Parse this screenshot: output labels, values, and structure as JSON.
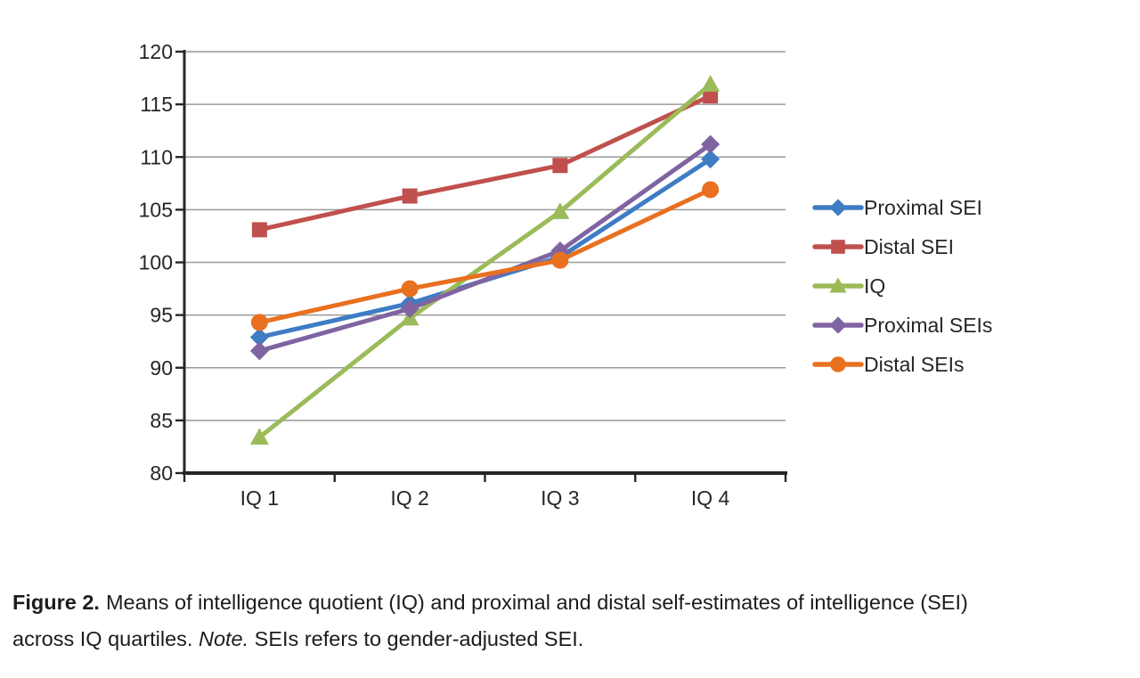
{
  "chart_data": {
    "type": "line",
    "categories": [
      "IQ 1",
      "IQ 2",
      "IQ 3",
      "IQ 4"
    ],
    "series": [
      {
        "name": "Proximal SEI",
        "color": "#3E7CC4",
        "marker": "diamond",
        "values": [
          92.9,
          96.1,
          100.5,
          109.8
        ]
      },
      {
        "name": "Distal SEI",
        "color": "#C0504D",
        "marker": "square",
        "values": [
          103.1,
          106.3,
          109.2,
          115.8
        ]
      },
      {
        "name": "IQ",
        "color": "#9BBB59",
        "marker": "triangle",
        "values": [
          83.4,
          94.7,
          104.8,
          116.9
        ]
      },
      {
        "name": "Proximal SEIs",
        "color": "#8064A2",
        "marker": "diamond",
        "values": [
          91.6,
          95.6,
          101.1,
          111.2
        ]
      },
      {
        "name": "Distal SEIs",
        "color": "#E8701F",
        "marker": "circle",
        "values": [
          94.3,
          97.5,
          100.2,
          106.9
        ]
      }
    ],
    "title": "",
    "xlabel": "",
    "ylabel": "",
    "ylim": [
      80,
      120
    ],
    "ytick_step": 5,
    "yticks": [
      80,
      85,
      90,
      95,
      100,
      105,
      110,
      115,
      120
    ],
    "grid": true,
    "legend_position": "right",
    "axis_color": "#262626",
    "grid_color": "#9a9a9a",
    "tick_label_color": "#262626"
  },
  "caption": {
    "line1_bold": "Figure 2.",
    "line1_text": "Means of intelligence quotient (IQ) and proximal and distal self-estimates of intelligence (SEI)",
    "line2_text1": "across IQ quartiles. ",
    "line2_note_italic": "Note.",
    "line2_text2": " SEIs refers to gender-adjusted SEI."
  }
}
